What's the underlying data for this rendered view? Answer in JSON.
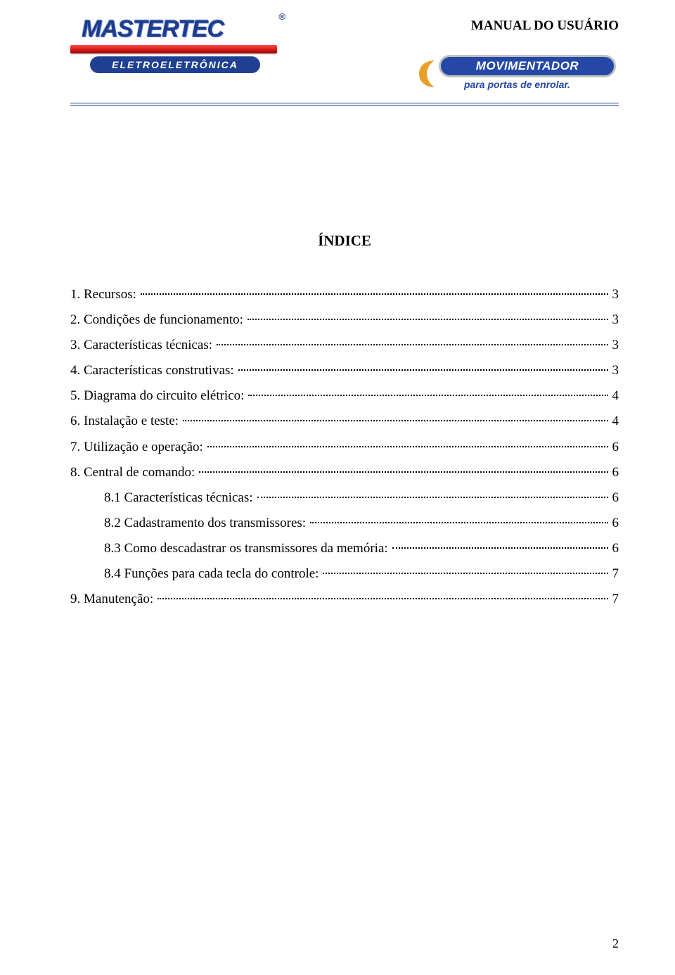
{
  "header": {
    "brand_name": "MASTERTEC",
    "reg_mark": "®",
    "sublabel": "ELETROELETRÔNICA",
    "doc_title": "MANUAL DO USUÁRIO",
    "badge": {
      "main": "MOVIMENTADOR",
      "sub": "para portas de enrolar."
    },
    "colors": {
      "brand_blue": "#1e3c8c",
      "red_bar_top": "#ff4a4a",
      "red_bar_mid": "#d51414",
      "red_bar_bot": "#8b0808",
      "badge_blue": "#2548a6",
      "badge_border": "#bfc0c2",
      "swoosh": "#e8a029"
    }
  },
  "index": {
    "heading": "ÍNDICE",
    "entries": [
      {
        "label": "1. Recursos:",
        "page": "3",
        "indent": false
      },
      {
        "label": "2. Condições de funcionamento:",
        "page": "3",
        "indent": false
      },
      {
        "label": "3. Características técnicas:",
        "page": "3",
        "indent": false
      },
      {
        "label": "4. Características construtivas:",
        "page": "3",
        "indent": false
      },
      {
        "label": "5. Diagrama do circuito elétrico:",
        "page": "4",
        "indent": false
      },
      {
        "label": "6. Instalação e teste:",
        "page": "4",
        "indent": false
      },
      {
        "label": "7. Utilização e operação:",
        "page": "6",
        "indent": false
      },
      {
        "label": "8. Central de comando:",
        "page": "6",
        "indent": false
      },
      {
        "label": "8.1 Características técnicas:",
        "page": "6",
        "indent": true
      },
      {
        "label": "8.2 Cadastramento dos transmissores:",
        "page": "6",
        "indent": true
      },
      {
        "label": "8.3 Como descadastrar os transmissores da memória:",
        "page": "6",
        "indent": true
      },
      {
        "label": "8.4 Funções para cada tecla do controle:",
        "page": "7",
        "indent": true
      },
      {
        "label": "9. Manutenção:",
        "page": "7",
        "indent": false
      }
    ]
  },
  "footer": {
    "page_number": "2"
  },
  "typography": {
    "body_font": "Times New Roman",
    "body_size_pt": 14,
    "heading_size_pt": 16,
    "doc_title_size_pt": 14
  }
}
